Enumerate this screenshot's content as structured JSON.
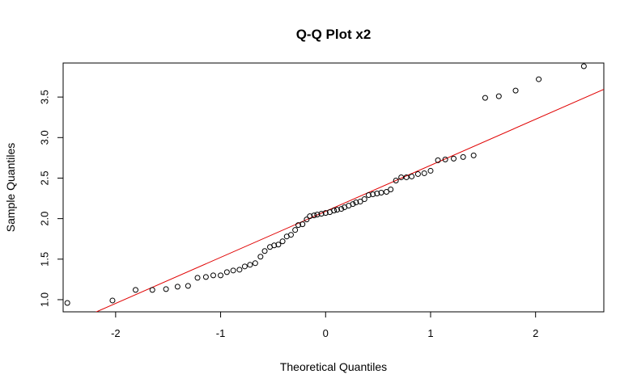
{
  "chart_data": {
    "type": "scatter",
    "title": "Q-Q Plot x2",
    "xlabel": "Theoretical Quantiles",
    "ylabel": "Sample Quantiles",
    "xlim": [
      -2.5,
      2.65
    ],
    "ylim": [
      0.85,
      3.92
    ],
    "x_ticks": [
      -2,
      -1,
      0,
      1,
      2
    ],
    "x_tick_labels": [
      "-2",
      "-1",
      "0",
      "1",
      "2"
    ],
    "y_ticks": [
      1.0,
      1.5,
      2.0,
      2.5,
      3.0,
      3.5
    ],
    "y_tick_labels": [
      "1.0",
      "1.5",
      "2.0",
      "2.5",
      "3.0",
      "3.5"
    ],
    "grid": false,
    "point_color": "#000000",
    "line_color": "#e00000",
    "reference_line": {
      "intercept": 2.09,
      "slope": 0.568
    },
    "points": [
      {
        "x": -2.46,
        "y": 0.96
      },
      {
        "x": -2.03,
        "y": 0.99
      },
      {
        "x": -1.81,
        "y": 1.12
      },
      {
        "x": -1.65,
        "y": 1.12
      },
      {
        "x": -1.52,
        "y": 1.13
      },
      {
        "x": -1.41,
        "y": 1.16
      },
      {
        "x": -1.31,
        "y": 1.17
      },
      {
        "x": -1.22,
        "y": 1.27
      },
      {
        "x": -1.14,
        "y": 1.28
      },
      {
        "x": -1.07,
        "y": 1.3
      },
      {
        "x": -1.0,
        "y": 1.3
      },
      {
        "x": -0.94,
        "y": 1.34
      },
      {
        "x": -0.88,
        "y": 1.36
      },
      {
        "x": -0.82,
        "y": 1.37
      },
      {
        "x": -0.77,
        "y": 1.41
      },
      {
        "x": -0.72,
        "y": 1.43
      },
      {
        "x": -0.67,
        "y": 1.45
      },
      {
        "x": -0.62,
        "y": 1.53
      },
      {
        "x": -0.58,
        "y": 1.6
      },
      {
        "x": -0.53,
        "y": 1.65
      },
      {
        "x": -0.49,
        "y": 1.67
      },
      {
        "x": -0.45,
        "y": 1.68
      },
      {
        "x": -0.41,
        "y": 1.72
      },
      {
        "x": -0.37,
        "y": 1.78
      },
      {
        "x": -0.33,
        "y": 1.8
      },
      {
        "x": -0.29,
        "y": 1.86
      },
      {
        "x": -0.26,
        "y": 1.92
      },
      {
        "x": -0.22,
        "y": 1.93
      },
      {
        "x": -0.18,
        "y": 1.99
      },
      {
        "x": -0.15,
        "y": 2.03
      },
      {
        "x": -0.11,
        "y": 2.04
      },
      {
        "x": -0.08,
        "y": 2.05
      },
      {
        "x": -0.04,
        "y": 2.06
      },
      {
        "x": 0.0,
        "y": 2.07
      },
      {
        "x": 0.04,
        "y": 2.08
      },
      {
        "x": 0.08,
        "y": 2.1
      },
      {
        "x": 0.11,
        "y": 2.11
      },
      {
        "x": 0.15,
        "y": 2.12
      },
      {
        "x": 0.18,
        "y": 2.14
      },
      {
        "x": 0.22,
        "y": 2.16
      },
      {
        "x": 0.26,
        "y": 2.18
      },
      {
        "x": 0.29,
        "y": 2.2
      },
      {
        "x": 0.33,
        "y": 2.21
      },
      {
        "x": 0.37,
        "y": 2.24
      },
      {
        "x": 0.41,
        "y": 2.29
      },
      {
        "x": 0.45,
        "y": 2.3
      },
      {
        "x": 0.49,
        "y": 2.31
      },
      {
        "x": 0.53,
        "y": 2.32
      },
      {
        "x": 0.58,
        "y": 2.33
      },
      {
        "x": 0.62,
        "y": 2.36
      },
      {
        "x": 0.67,
        "y": 2.47
      },
      {
        "x": 0.72,
        "y": 2.51
      },
      {
        "x": 0.77,
        "y": 2.51
      },
      {
        "x": 0.82,
        "y": 2.52
      },
      {
        "x": 0.88,
        "y": 2.55
      },
      {
        "x": 0.94,
        "y": 2.56
      },
      {
        "x": 1.0,
        "y": 2.59
      },
      {
        "x": 1.07,
        "y": 2.72
      },
      {
        "x": 1.14,
        "y": 2.73
      },
      {
        "x": 1.22,
        "y": 2.74
      },
      {
        "x": 1.31,
        "y": 2.76
      },
      {
        "x": 1.41,
        "y": 2.78
      },
      {
        "x": 1.52,
        "y": 3.49
      },
      {
        "x": 1.65,
        "y": 3.51
      },
      {
        "x": 1.81,
        "y": 3.58
      },
      {
        "x": 2.03,
        "y": 3.72
      },
      {
        "x": 2.46,
        "y": 3.88
      }
    ]
  }
}
